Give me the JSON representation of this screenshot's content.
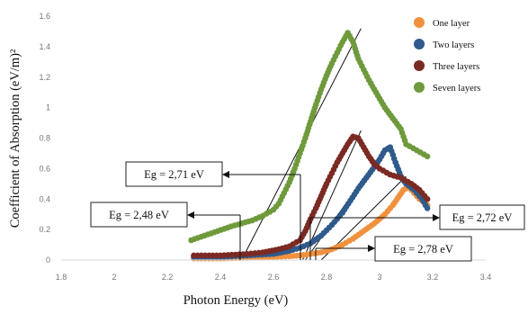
{
  "chart_data": {
    "type": "scatter",
    "xlabel": "Photon Energy (eV)",
    "ylabel": "Coefficient of Absorption (eV/m)²",
    "xlim": [
      1.8,
      3.4
    ],
    "ylim": [
      0,
      1.6
    ],
    "x_ticks": [
      1.8,
      2,
      2.2,
      2.4,
      2.6,
      2.8,
      3,
      3.2,
      3.4
    ],
    "y_ticks": [
      0,
      0.2,
      0.4,
      0.6,
      0.8,
      1,
      1.2,
      1.4,
      1.6
    ],
    "grid": false,
    "legend_position": "top-right",
    "series": [
      {
        "name": "One layer",
        "color": "#f0913f",
        "points": [
          [
            2.3,
            0.01
          ],
          [
            2.4,
            0.01
          ],
          [
            2.5,
            0.015
          ],
          [
            2.6,
            0.02
          ],
          [
            2.66,
            0.025
          ],
          [
            2.7,
            0.03
          ],
          [
            2.74,
            0.04
          ],
          [
            2.78,
            0.05
          ],
          [
            2.82,
            0.07
          ],
          [
            2.86,
            0.1
          ],
          [
            2.9,
            0.14
          ],
          [
            2.94,
            0.19
          ],
          [
            2.98,
            0.24
          ],
          [
            3.02,
            0.3
          ],
          [
            3.05,
            0.36
          ],
          [
            3.07,
            0.41
          ],
          [
            3.09,
            0.46
          ],
          [
            3.11,
            0.48
          ],
          [
            3.13,
            0.44
          ],
          [
            3.15,
            0.4
          ],
          [
            3.17,
            0.38
          ],
          [
            3.18,
            0.36
          ]
        ]
      },
      {
        "name": "Two layers",
        "color": "#2f5a8c",
        "points": [
          [
            2.3,
            0.02
          ],
          [
            2.4,
            0.02
          ],
          [
            2.5,
            0.03
          ],
          [
            2.6,
            0.04
          ],
          [
            2.66,
            0.06
          ],
          [
            2.7,
            0.08
          ],
          [
            2.74,
            0.11
          ],
          [
            2.78,
            0.16
          ],
          [
            2.82,
            0.23
          ],
          [
            2.86,
            0.31
          ],
          [
            2.89,
            0.39
          ],
          [
            2.92,
            0.47
          ],
          [
            2.95,
            0.54
          ],
          [
            2.98,
            0.61
          ],
          [
            3.0,
            0.66
          ],
          [
            3.02,
            0.72
          ],
          [
            3.04,
            0.74
          ],
          [
            3.06,
            0.64
          ],
          [
            3.08,
            0.55
          ],
          [
            3.1,
            0.5
          ],
          [
            3.13,
            0.46
          ],
          [
            3.16,
            0.4
          ],
          [
            3.18,
            0.34
          ]
        ]
      },
      {
        "name": "Three layers",
        "color": "#7b2a23",
        "points": [
          [
            2.3,
            0.03
          ],
          [
            2.4,
            0.03
          ],
          [
            2.5,
            0.04
          ],
          [
            2.56,
            0.05
          ],
          [
            2.62,
            0.07
          ],
          [
            2.66,
            0.09
          ],
          [
            2.7,
            0.13
          ],
          [
            2.72,
            0.19
          ],
          [
            2.74,
            0.27
          ],
          [
            2.76,
            0.34
          ],
          [
            2.78,
            0.42
          ],
          [
            2.8,
            0.5
          ],
          [
            2.82,
            0.57
          ],
          [
            2.84,
            0.64
          ],
          [
            2.86,
            0.7
          ],
          [
            2.88,
            0.76
          ],
          [
            2.9,
            0.81
          ],
          [
            2.92,
            0.8
          ],
          [
            2.94,
            0.74
          ],
          [
            2.96,
            0.68
          ],
          [
            2.98,
            0.63
          ],
          [
            3.0,
            0.6
          ],
          [
            3.04,
            0.56
          ],
          [
            3.08,
            0.54
          ],
          [
            3.12,
            0.5
          ],
          [
            3.15,
            0.46
          ],
          [
            3.18,
            0.4
          ]
        ]
      },
      {
        "name": "Seven layers",
        "color": "#6f9a3c",
        "points": [
          [
            2.29,
            0.13
          ],
          [
            2.34,
            0.16
          ],
          [
            2.39,
            0.19
          ],
          [
            2.44,
            0.22
          ],
          [
            2.48,
            0.24
          ],
          [
            2.52,
            0.26
          ],
          [
            2.56,
            0.29
          ],
          [
            2.6,
            0.33
          ],
          [
            2.62,
            0.37
          ],
          [
            2.64,
            0.44
          ],
          [
            2.66,
            0.51
          ],
          [
            2.68,
            0.6
          ],
          [
            2.7,
            0.7
          ],
          [
            2.72,
            0.8
          ],
          [
            2.74,
            0.91
          ],
          [
            2.76,
            1.02
          ],
          [
            2.78,
            1.12
          ],
          [
            2.8,
            1.21
          ],
          [
            2.82,
            1.29
          ],
          [
            2.84,
            1.36
          ],
          [
            2.86,
            1.43
          ],
          [
            2.88,
            1.49
          ],
          [
            2.9,
            1.43
          ],
          [
            2.92,
            1.32
          ],
          [
            2.94,
            1.25
          ],
          [
            2.96,
            1.18
          ],
          [
            2.98,
            1.12
          ],
          [
            3.0,
            1.06
          ],
          [
            3.02,
            1.0
          ],
          [
            3.05,
            0.93
          ],
          [
            3.08,
            0.86
          ],
          [
            3.1,
            0.76
          ],
          [
            3.14,
            0.72
          ],
          [
            3.18,
            0.68
          ]
        ]
      }
    ],
    "annotations": [
      {
        "label": "Eg = 2,71 eV",
        "x": 2.71
      },
      {
        "label": "Eg = 2,48 eV",
        "x": 2.48
      },
      {
        "label": "Eg = 2,72 eV",
        "x": 2.72
      },
      {
        "label": "Eg = 2,78 eV",
        "x": 2.78
      }
    ],
    "fit_lines": [
      {
        "series": "Seven layers",
        "from": [
          2.48,
          0
        ],
        "to": [
          2.93,
          1.52
        ]
      },
      {
        "series": "Three layers",
        "from": [
          2.71,
          0
        ],
        "to": [
          2.93,
          0.85
        ]
      },
      {
        "series": "Two layers",
        "from": [
          2.72,
          0
        ],
        "to": [
          3.03,
          0.75
        ]
      },
      {
        "series": "One layer",
        "from": [
          2.78,
          0
        ],
        "to": [
          3.1,
          0.55
        ]
      }
    ]
  }
}
